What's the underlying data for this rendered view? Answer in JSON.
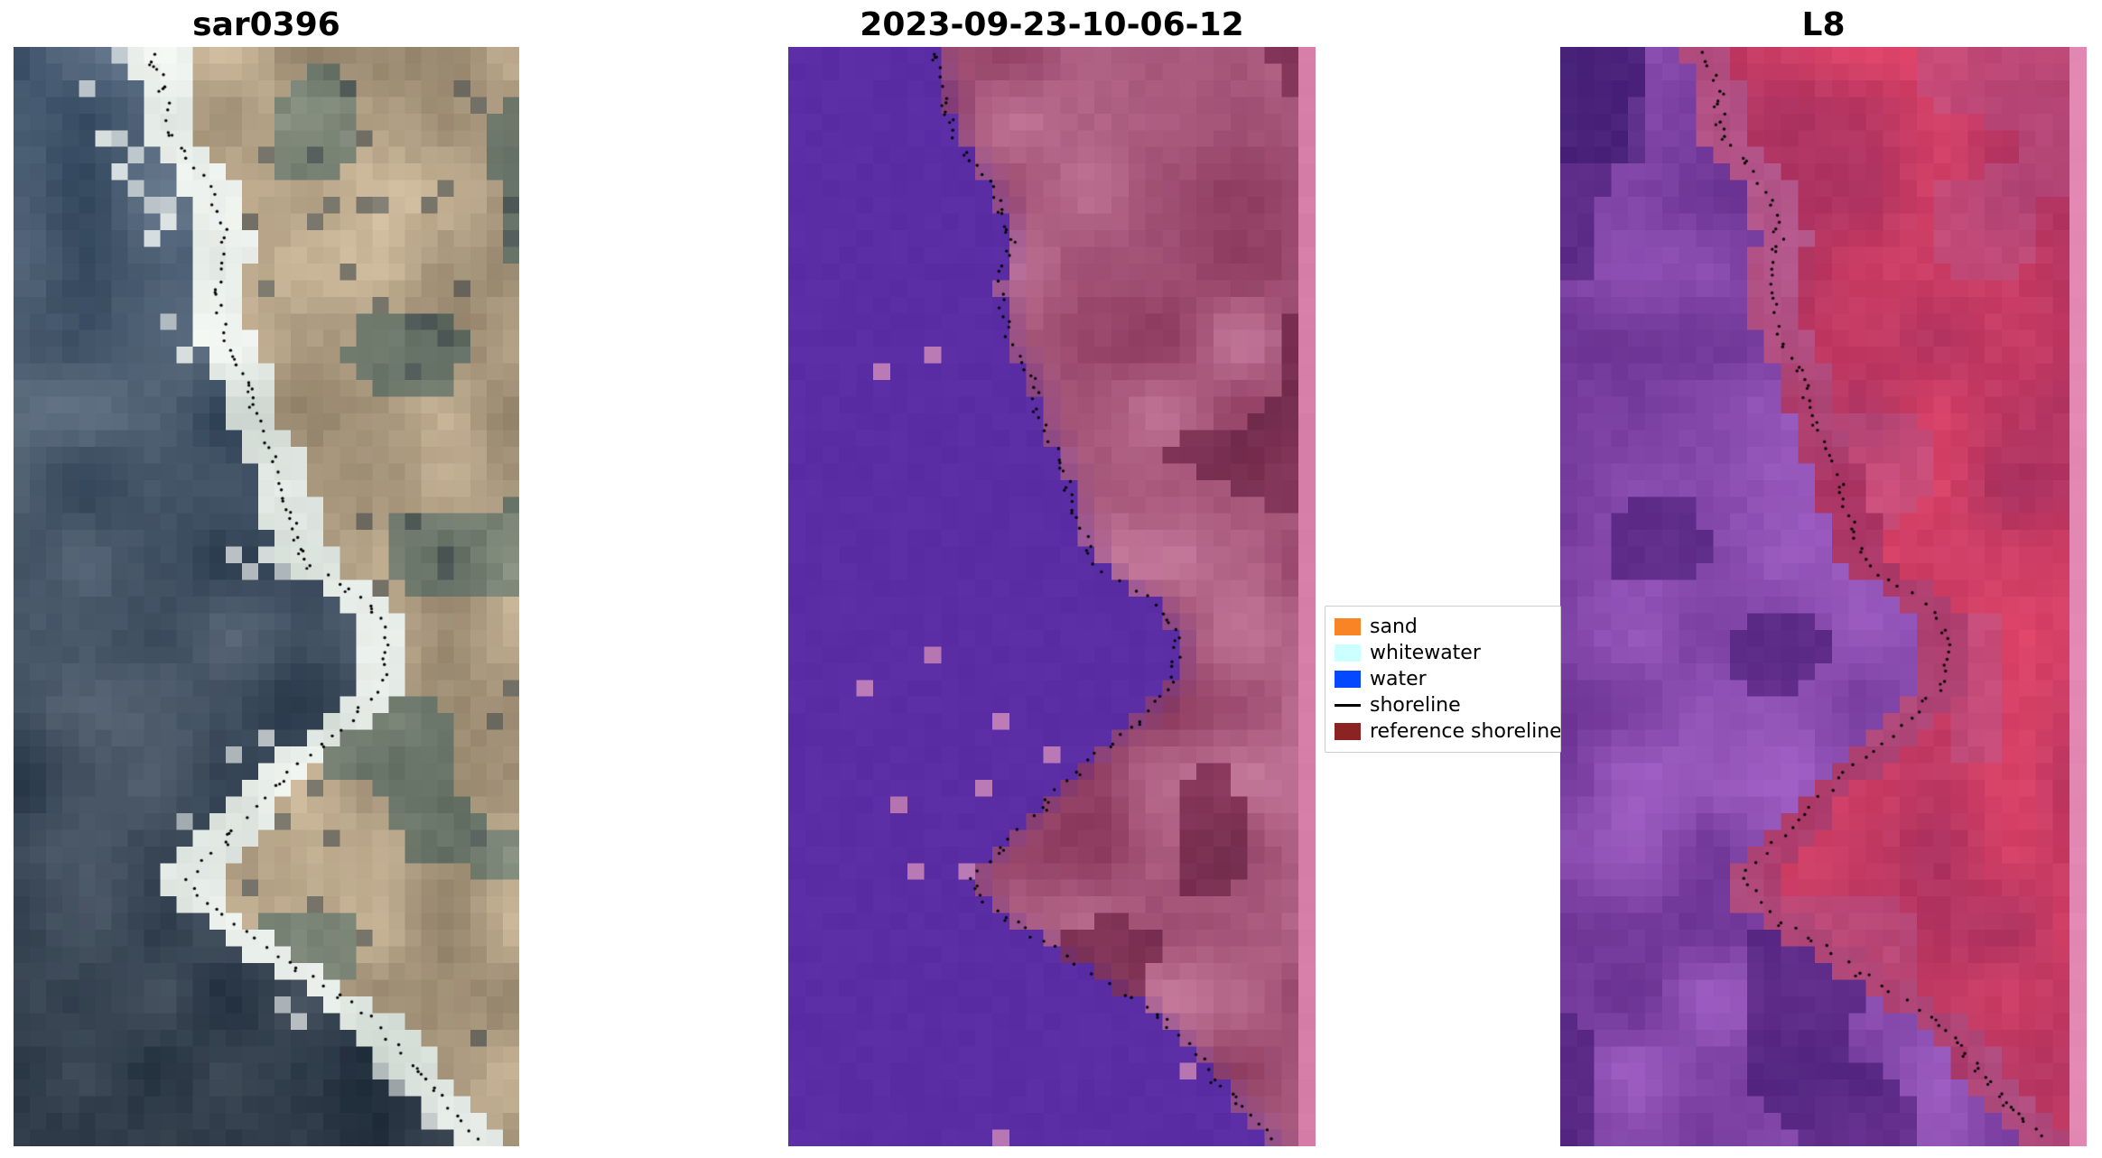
{
  "figure": {
    "background": "#ffffff",
    "titles": [
      {
        "text": "sar0396"
      },
      {
        "text": "2023-09-23-10-06-12"
      },
      {
        "text": "L8"
      }
    ]
  },
  "legend": {
    "border_color": "#cccccc",
    "background": "#ffffff",
    "items": [
      {
        "label": "sand",
        "swatch": "patch",
        "color": "#f98426"
      },
      {
        "label": "whitewater",
        "swatch": "patch",
        "color": "#ccffff"
      },
      {
        "label": "water",
        "swatch": "patch",
        "color": "#0448ff"
      },
      {
        "label": "shoreline",
        "swatch": "line",
        "color": "#000000"
      },
      {
        "label": "reference shoreline",
        "swatch": "patch",
        "color": "#8b2323"
      }
    ]
  },
  "chart_data": {
    "type": "heatmap",
    "panels": [
      {
        "title": "sar0396",
        "kind": "sar",
        "content": "SAR/optical RGB composite with detected shoreline dots"
      },
      {
        "title": "2023-09-23-10-06-12",
        "kind": "classification",
        "content": "classified scene: water (left, purple), sand/land (right, pink), reference shoreline band at right edge"
      },
      {
        "title": "L8",
        "kind": "l8",
        "content": "Landsat-8 false-color composite with detected shoreline dots and reference band at right edge"
      }
    ],
    "legend": [
      {
        "label": "sand",
        "color": "#f98426"
      },
      {
        "label": "whitewater",
        "color": "#ccffff"
      },
      {
        "label": "water",
        "color": "#0448ff"
      },
      {
        "label": "shoreline",
        "color": "#000000"
      },
      {
        "label": "reference shoreline",
        "color": "#8b2323"
      }
    ],
    "grid": {
      "cols": 31,
      "rows": 66
    },
    "shoreline_path_yx": [
      [
        0.0,
        0.27
      ],
      [
        0.04,
        0.3
      ],
      [
        0.08,
        0.31
      ],
      [
        0.12,
        0.38
      ],
      [
        0.17,
        0.42
      ],
      [
        0.22,
        0.4
      ],
      [
        0.27,
        0.42
      ],
      [
        0.3,
        0.46
      ],
      [
        0.34,
        0.48
      ],
      [
        0.38,
        0.52
      ],
      [
        0.43,
        0.55
      ],
      [
        0.47,
        0.58
      ],
      [
        0.5,
        0.68
      ],
      [
        0.53,
        0.74
      ],
      [
        0.58,
        0.73
      ],
      [
        0.61,
        0.67
      ],
      [
        0.645,
        0.58
      ],
      [
        0.68,
        0.5
      ],
      [
        0.72,
        0.42
      ],
      [
        0.755,
        0.345
      ],
      [
        0.78,
        0.38
      ],
      [
        0.81,
        0.47
      ],
      [
        0.85,
        0.6
      ],
      [
        0.88,
        0.7
      ],
      [
        0.92,
        0.78
      ],
      [
        0.96,
        0.85
      ],
      [
        1.0,
        0.93
      ]
    ],
    "palettes": {
      "sar": {
        "water_dark": "#2e4256",
        "water_light": "#68798a",
        "foam": "#f4f8f4",
        "foam_dim": "#b8c4bc",
        "sand_light": "#cfbb9d",
        "sand_dark": "#8f8068",
        "scrub_light": "#8a9383",
        "scrub_dark": "#5c685e",
        "shadow": "#3c464b"
      },
      "classification": {
        "water": "#5b2da5",
        "water_speck": "#b878b4",
        "land_light": "#c4789a",
        "land_dark": "#8c3a5e",
        "land_deep": "#6e2a4a",
        "edge_stripe": "#d67ea8"
      },
      "l8": {
        "water_light": "#a05fc4",
        "water_dark": "#6a3292",
        "water_deep": "#51257f",
        "land_light": "#e04468",
        "land_dark": "#aa3260",
        "transition": "#b4598e",
        "edge_stripe": "#e288b2",
        "corner_dark": "#3a1a6e"
      },
      "shoreline_dots": "#000000"
    }
  }
}
